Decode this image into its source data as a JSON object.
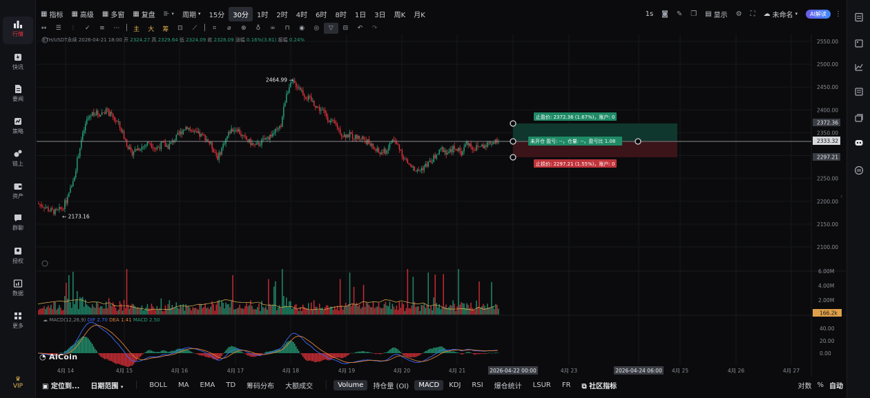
{
  "sidebar": {
    "items": [
      {
        "label": "行情",
        "icon": "chart-bar-icon",
        "active": true
      },
      {
        "label": "快讯",
        "icon": "flash-news-icon"
      },
      {
        "label": "要闻",
        "icon": "document-icon"
      },
      {
        "label": "策略",
        "icon": "strategy-icon"
      },
      {
        "label": "链上",
        "icon": "chain-icon"
      },
      {
        "label": "资产",
        "icon": "wallet-icon"
      },
      {
        "label": "群聊",
        "icon": "chat-icon"
      },
      {
        "label": "授权",
        "icon": "authorize-icon"
      },
      {
        "label": "数据",
        "icon": "data-icon"
      },
      {
        "label": "更多",
        "icon": "more-grid-icon"
      }
    ],
    "vip": "VIP"
  },
  "topbar": {
    "indicator": "指标",
    "advanced": "高级",
    "multi_window": "多窗",
    "replay": "复盘",
    "period": "周期",
    "intervals": [
      "15分",
      "30分",
      "1时",
      "2时",
      "4时",
      "6时",
      "8时",
      "1日",
      "3日",
      "周K",
      "月K"
    ],
    "active_interval": "30分",
    "unit": "1s",
    "display": "显示",
    "unnamed": "未命名",
    "ai_interpret": "AI解读"
  },
  "drawing_tools": {
    "main": "主",
    "large": "大",
    "chips": "筹"
  },
  "legend": {
    "symbol": "ETH/USDT永续",
    "time": "2026-04-21 18:00",
    "open_label": "开",
    "open": "2324.27",
    "high_label": "高",
    "high": "2329.64",
    "low_label": "低",
    "low": "2324.09",
    "close_label": "收",
    "close": "2328.09",
    "change_label": "涨幅",
    "change": "0.16%(3.81)",
    "amplitude_label": "振幅",
    "amplitude": "0.24%"
  },
  "chart_data": {
    "type": "candlestick",
    "title": "ETH/USDT永续",
    "interval": "30分",
    "ylim": [
      2070,
      2570
    ],
    "price_ticks": [
      "2550.00",
      "2500.00",
      "2450.00",
      "2400.00",
      "2350.00",
      "2300.00",
      "2250.00",
      "2200.00",
      "2150.00",
      "2100.00"
    ],
    "x_ticks": [
      "4月 14",
      "4月 15",
      "4月 16",
      "4月 17",
      "4月 18",
      "4月 19",
      "4月 20",
      "4月 21",
      "2026-04-22 00:00",
      "4月 23",
      "2026-04-24 06:00",
      "4月 25",
      "4月 26",
      "4月 27"
    ],
    "price_path": [
      [
        0,
        2195
      ],
      [
        2,
        2190
      ],
      [
        4,
        2180
      ],
      [
        6,
        2176
      ],
      [
        8,
        2185
      ],
      [
        10,
        2210
      ],
      [
        12,
        2260
      ],
      [
        14,
        2330
      ],
      [
        16,
        2380
      ],
      [
        18,
        2395
      ],
      [
        20,
        2390
      ],
      [
        22,
        2400
      ],
      [
        24,
        2385
      ],
      [
        26,
        2370
      ],
      [
        28,
        2340
      ],
      [
        30,
        2305
      ],
      [
        32,
        2315
      ],
      [
        34,
        2320
      ],
      [
        36,
        2330
      ],
      [
        38,
        2315
      ],
      [
        40,
        2325
      ],
      [
        42,
        2320
      ],
      [
        44,
        2335
      ],
      [
        46,
        2350
      ],
      [
        48,
        2365
      ],
      [
        50,
        2350
      ],
      [
        52,
        2345
      ],
      [
        54,
        2340
      ],
      [
        56,
        2320
      ],
      [
        58,
        2295
      ],
      [
        60,
        2330
      ],
      [
        62,
        2355
      ],
      [
        64,
        2360
      ],
      [
        66,
        2340
      ],
      [
        68,
        2330
      ],
      [
        70,
        2320
      ],
      [
        72,
        2330
      ],
      [
        74,
        2340
      ],
      [
        76,
        2350
      ],
      [
        78,
        2360
      ],
      [
        80,
        2440
      ],
      [
        82,
        2460
      ],
      [
        84,
        2450
      ],
      [
        86,
        2430
      ],
      [
        88,
        2420
      ],
      [
        90,
        2405
      ],
      [
        92,
        2395
      ],
      [
        94,
        2375
      ],
      [
        96,
        2365
      ],
      [
        98,
        2345
      ],
      [
        100,
        2345
      ],
      [
        102,
        2340
      ],
      [
        104,
        2340
      ],
      [
        106,
        2330
      ],
      [
        108,
        2315
      ],
      [
        110,
        2305
      ],
      [
        112,
        2310
      ],
      [
        114,
        2335
      ],
      [
        116,
        2320
      ],
      [
        118,
        2290
      ],
      [
        120,
        2275
      ],
      [
        122,
        2265
      ],
      [
        124,
        2275
      ],
      [
        126,
        2285
      ],
      [
        128,
        2300
      ],
      [
        130,
        2315
      ],
      [
        132,
        2305
      ],
      [
        134,
        2320
      ],
      [
        136,
        2305
      ],
      [
        138,
        2330
      ],
      [
        140,
        2315
      ],
      [
        142,
        2320
      ],
      [
        144,
        2325
      ],
      [
        146,
        2330
      ],
      [
        148,
        2328
      ]
    ],
    "high_marker": "2464.99",
    "low_marker": "2173.16",
    "current_price": "2333.32",
    "take_profit_price": "2372.36",
    "stop_loss_price": "2297.21",
    "volume_ticks": [
      "6.00M",
      "4.00M",
      "2.00M"
    ],
    "volume_current": "166.2k",
    "macd_ticks": [
      "40.00",
      "20.00",
      "0.00"
    ]
  },
  "order_box": {
    "take_profit": "止盈价: 2372.36 (1.67%)，账户: 0",
    "position": "未开仓 盈亏: --，仓量: --，盈亏比 1.08",
    "stop_loss": "止损价: 2297.21 (1.55%)，账户: 0"
  },
  "macd_legend": {
    "name": "MACD(12,26,9)",
    "dif": "DIF 2.70",
    "dea": "DEA 1.41",
    "macd": "MACD 2.50"
  },
  "watermark": "AiCoin",
  "bottombar": {
    "locate": "定位到...",
    "date_range": "日期范围",
    "indicators": [
      "BOLL",
      "MA",
      "EMA",
      "TD",
      "筹码分布",
      "大额成交",
      "Volume",
      "持仓量 (OI)",
      "MACD",
      "KDJ",
      "RSI",
      "爆仓统计",
      "LSUR",
      "FR",
      "社区指标"
    ],
    "active": [
      "Volume",
      "MACD"
    ],
    "log": "对数",
    "percent": "%",
    "auto": "自动"
  },
  "colors": {
    "up": "#26a17b",
    "down": "#e6323b",
    "accent_red": "#e6323b",
    "gold": "#e0b352",
    "background": "#0b0b0d"
  }
}
